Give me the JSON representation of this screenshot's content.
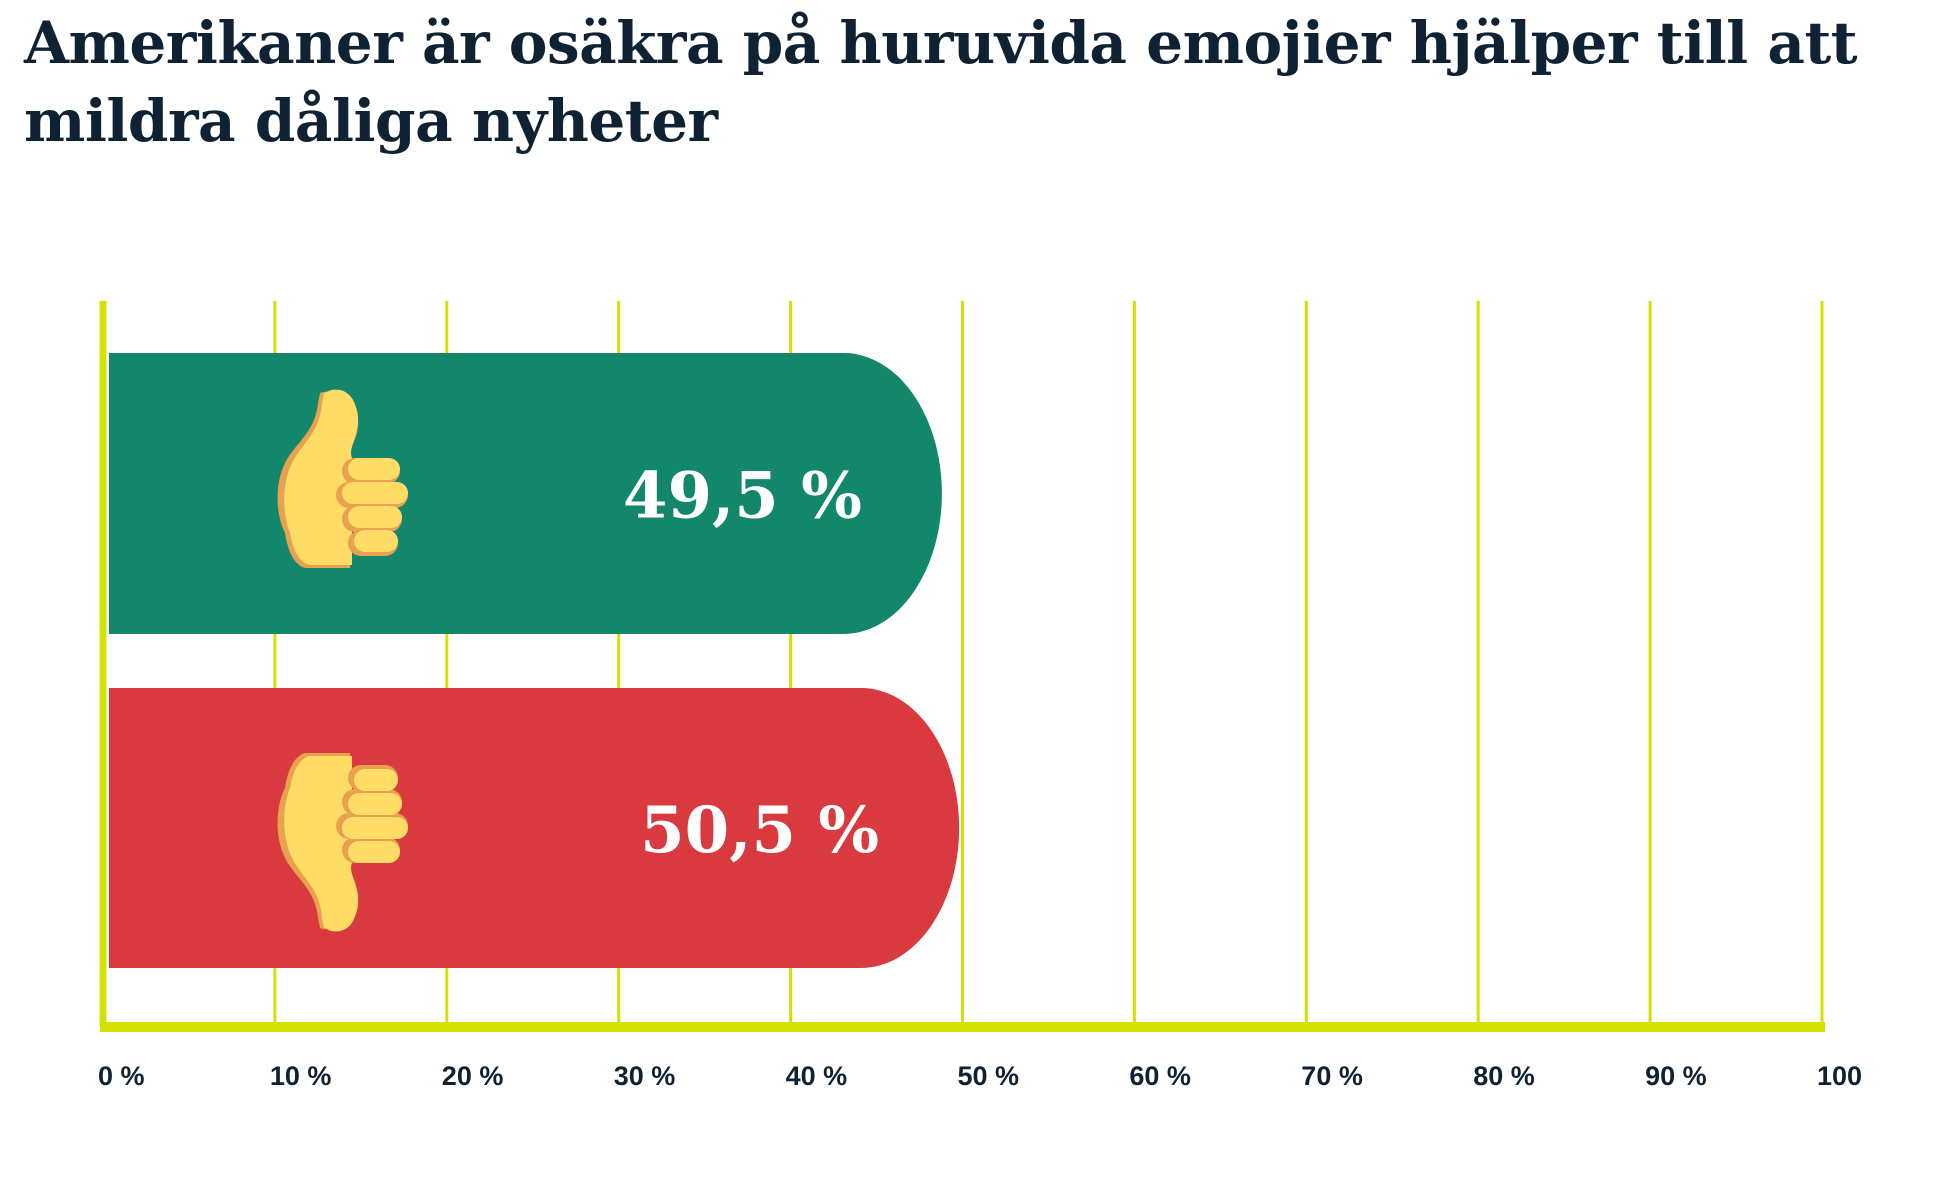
{
  "title": "Amerikaner är osäkra på huruvida emojier hjälper till att mildra dåliga nyheter",
  "chart_data": {
    "type": "bar",
    "orientation": "horizontal",
    "title": "Amerikaner är osäkra på huruvida emojier hjälper till att mildra dåliga nyheter",
    "categories": [
      "thumbs-up",
      "thumbs-down"
    ],
    "values": [
      49.5,
      50.5
    ],
    "value_labels": [
      "49,5 %",
      "50,5 %"
    ],
    "bar_colors": [
      "#12876c",
      "#d93a40"
    ],
    "bar_icons": [
      "thumbs-up-icon",
      "thumbs-down-icon"
    ],
    "xlim": [
      0,
      100
    ],
    "x_ticks": [
      0,
      10,
      20,
      30,
      40,
      50,
      60,
      70,
      80,
      90,
      100
    ],
    "x_tick_labels": [
      "0 %",
      "10 %",
      "20 %",
      "30 %",
      "40 %",
      "50 %",
      "60 %",
      "70 %",
      "80 %",
      "90 %",
      "100"
    ],
    "grid": true,
    "grid_color": "#d4e200",
    "text_color": "#0f2233",
    "xlabel": "",
    "ylabel": ""
  }
}
